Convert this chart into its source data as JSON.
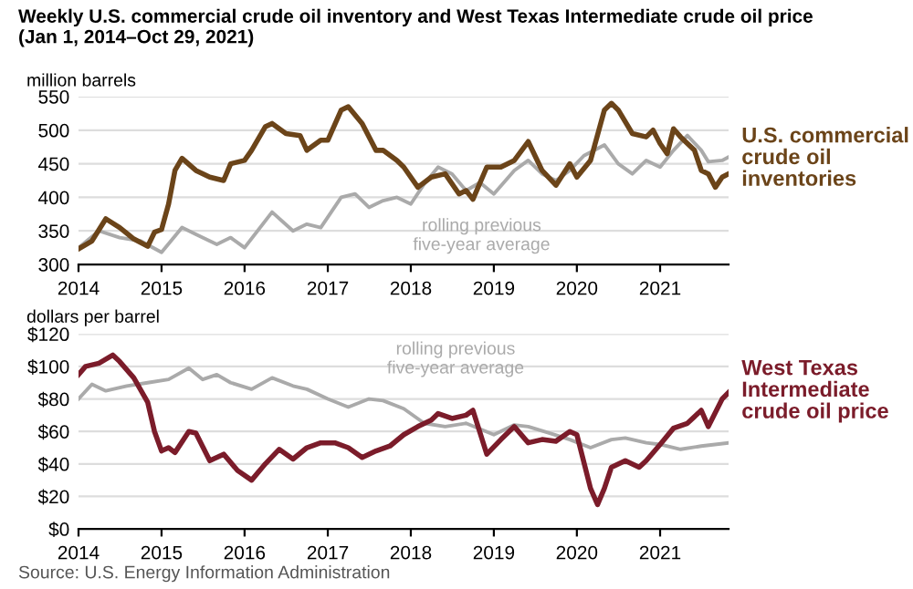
{
  "chart_data": [
    {
      "type": "line",
      "title": "Weekly U.S. commercial crude oil inventory and West Texas Intermediate crude oil price\n(Jan 1, 2014–Oct 29, 2021)",
      "ylabel": "million barrels",
      "xlim": [
        "2014-01-01",
        "2021-10-29"
      ],
      "xticks": [
        "2014",
        "2015",
        "2016",
        "2017",
        "2018",
        "2019",
        "2020",
        "2021"
      ],
      "ylim": [
        300,
        550
      ],
      "yticks": [
        300,
        350,
        400,
        450,
        500,
        550
      ],
      "grid": "y",
      "legend": false,
      "line_style": "solid",
      "marker": "none",
      "series": [
        {
          "name": "rolling previous\nfive-year average",
          "color": "#aaaaaa",
          "x": [
            "2014-01",
            "2014-04",
            "2014-07",
            "2014-10",
            "2015-01",
            "2015-04",
            "2015-06",
            "2015-09",
            "2015-11",
            "2016-01",
            "2016-05",
            "2016-08",
            "2016-10",
            "2016-12",
            "2017-03",
            "2017-05",
            "2017-07",
            "2017-09",
            "2017-11",
            "2018-01",
            "2018-03",
            "2018-05",
            "2018-07",
            "2018-09",
            "2018-11",
            "2019-01",
            "2019-04",
            "2019-06",
            "2019-08",
            "2019-10",
            "2019-12",
            "2020-02",
            "2020-05",
            "2020-07",
            "2020-09",
            "2020-11",
            "2021-01",
            "2021-03",
            "2021-05",
            "2021-07",
            "2021-08",
            "2021-10",
            "2021-10-29"
          ],
          "values": [
            325,
            350,
            340,
            335,
            318,
            355,
            345,
            330,
            340,
            325,
            378,
            350,
            360,
            355,
            400,
            405,
            385,
            395,
            400,
            390,
            420,
            445,
            435,
            410,
            422,
            405,
            440,
            455,
            435,
            425,
            440,
            462,
            478,
            450,
            435,
            455,
            445,
            470,
            492,
            470,
            453,
            455,
            460
          ]
        },
        {
          "name": "U.S. commercial\ncrude oil\ninventories",
          "color": "#6b4419",
          "x": [
            "2014-01",
            "2014-03",
            "2014-05",
            "2014-07",
            "2014-09",
            "2014-11",
            "2014-12",
            "2015-01",
            "2015-02",
            "2015-03",
            "2015-04",
            "2015-06",
            "2015-08",
            "2015-10",
            "2015-11",
            "2016-01",
            "2016-02",
            "2016-04",
            "2016-05",
            "2016-07",
            "2016-09",
            "2016-10",
            "2016-12",
            "2017-01",
            "2017-03",
            "2017-04",
            "2017-06",
            "2017-08",
            "2017-09",
            "2017-11",
            "2017-12",
            "2018-02",
            "2018-04",
            "2018-06",
            "2018-08",
            "2018-09",
            "2018-10",
            "2018-12",
            "2019-02",
            "2019-04",
            "2019-06",
            "2019-08",
            "2019-10",
            "2019-12",
            "2020-01",
            "2020-03",
            "2020-05",
            "2020-06",
            "2020-07",
            "2020-09",
            "2020-11",
            "2020-12",
            "2021-01",
            "2021-02",
            "2021-03",
            "2021-04",
            "2021-06",
            "2021-07",
            "2021-08",
            "2021-09",
            "2021-10",
            "2021-10-29"
          ],
          "values": [
            323,
            335,
            368,
            355,
            338,
            327,
            348,
            352,
            390,
            440,
            458,
            440,
            430,
            425,
            450,
            455,
            470,
            505,
            510,
            495,
            492,
            470,
            485,
            485,
            530,
            535,
            510,
            470,
            470,
            455,
            445,
            415,
            430,
            435,
            405,
            410,
            397,
            445,
            445,
            455,
            483,
            440,
            418,
            450,
            430,
            455,
            530,
            540,
            530,
            495,
            490,
            500,
            480,
            465,
            502,
            490,
            470,
            440,
            435,
            415,
            430,
            435
          ]
        }
      ]
    },
    {
      "type": "line",
      "ylabel": "dollars per barrel",
      "xlim": [
        "2014-01-01",
        "2021-10-29"
      ],
      "xticks": [
        "2014",
        "2015",
        "2016",
        "2017",
        "2018",
        "2019",
        "2020",
        "2021"
      ],
      "ylim": [
        0,
        120
      ],
      "yticks": [
        {
          "value": 0,
          "label": "$0"
        },
        {
          "value": 20,
          "label": "$20"
        },
        {
          "value": 40,
          "label": "$40"
        },
        {
          "value": 60,
          "label": "$60"
        },
        {
          "value": 80,
          "label": "$80"
        },
        {
          "value": 100,
          "label": "$100"
        },
        {
          "value": 120,
          "label": "$120"
        }
      ],
      "grid": "y",
      "legend": false,
      "line_style": "solid",
      "marker": "none",
      "annotations": [
        "Source: U.S. Energy Information Administration"
      ],
      "series": [
        {
          "name": "rolling previous\nfive-year average",
          "color": "#aaaaaa",
          "x": [
            "2014-01",
            "2014-03",
            "2014-05",
            "2014-08",
            "2014-11",
            "2015-02",
            "2015-05",
            "2015-07",
            "2015-09",
            "2015-11",
            "2016-02",
            "2016-05",
            "2016-08",
            "2016-10",
            "2017-01",
            "2017-04",
            "2017-07",
            "2017-09",
            "2017-12",
            "2018-03",
            "2018-06",
            "2018-09",
            "2019-01",
            "2019-04",
            "2019-06",
            "2019-09",
            "2019-12",
            "2020-03",
            "2020-06",
            "2020-08",
            "2020-11",
            "2021-01",
            "2021-04",
            "2021-07",
            "2021-10-29"
          ],
          "values": [
            80,
            89,
            85,
            88,
            90,
            92,
            99,
            92,
            95,
            90,
            86,
            93,
            88,
            86,
            80,
            75,
            80,
            79,
            74,
            65,
            63,
            65,
            58,
            64,
            63,
            59,
            55,
            50,
            55,
            56,
            53,
            52,
            49,
            51,
            53
          ]
        },
        {
          "name": "West Texas\nIntermediate\ncrude oil price",
          "color": "#7b1c2a",
          "x": [
            "2014-01",
            "2014-02",
            "2014-04",
            "2014-06",
            "2014-07",
            "2014-09",
            "2014-11",
            "2014-12",
            "2015-01",
            "2015-02",
            "2015-03",
            "2015-05",
            "2015-06",
            "2015-08",
            "2015-10",
            "2015-12",
            "2016-02",
            "2016-04",
            "2016-06",
            "2016-08",
            "2016-10",
            "2016-12",
            "2017-02",
            "2017-04",
            "2017-06",
            "2017-08",
            "2017-10",
            "2017-12",
            "2018-02",
            "2018-04",
            "2018-05",
            "2018-07",
            "2018-09",
            "2018-10",
            "2018-12",
            "2019-02",
            "2019-04",
            "2019-06",
            "2019-08",
            "2019-10",
            "2019-12",
            "2020-01",
            "2020-03",
            "2020-04",
            "2020-05",
            "2020-06",
            "2020-08",
            "2020-10",
            "2020-11",
            "2021-01",
            "2021-03",
            "2021-05",
            "2021-07",
            "2021-08",
            "2021-10",
            "2021-10-29"
          ],
          "values": [
            95,
            100,
            102,
            107,
            103,
            93,
            78,
            60,
            48,
            50,
            47,
            60,
            59,
            42,
            46,
            36,
            30,
            40,
            49,
            43,
            50,
            53,
            53,
            50,
            44,
            48,
            51,
            58,
            63,
            67,
            71,
            68,
            70,
            73,
            46,
            55,
            63,
            53,
            55,
            54,
            60,
            58,
            25,
            15,
            25,
            38,
            42,
            38,
            42,
            52,
            62,
            65,
            73,
            63,
            80,
            84
          ]
        }
      ]
    }
  ]
}
